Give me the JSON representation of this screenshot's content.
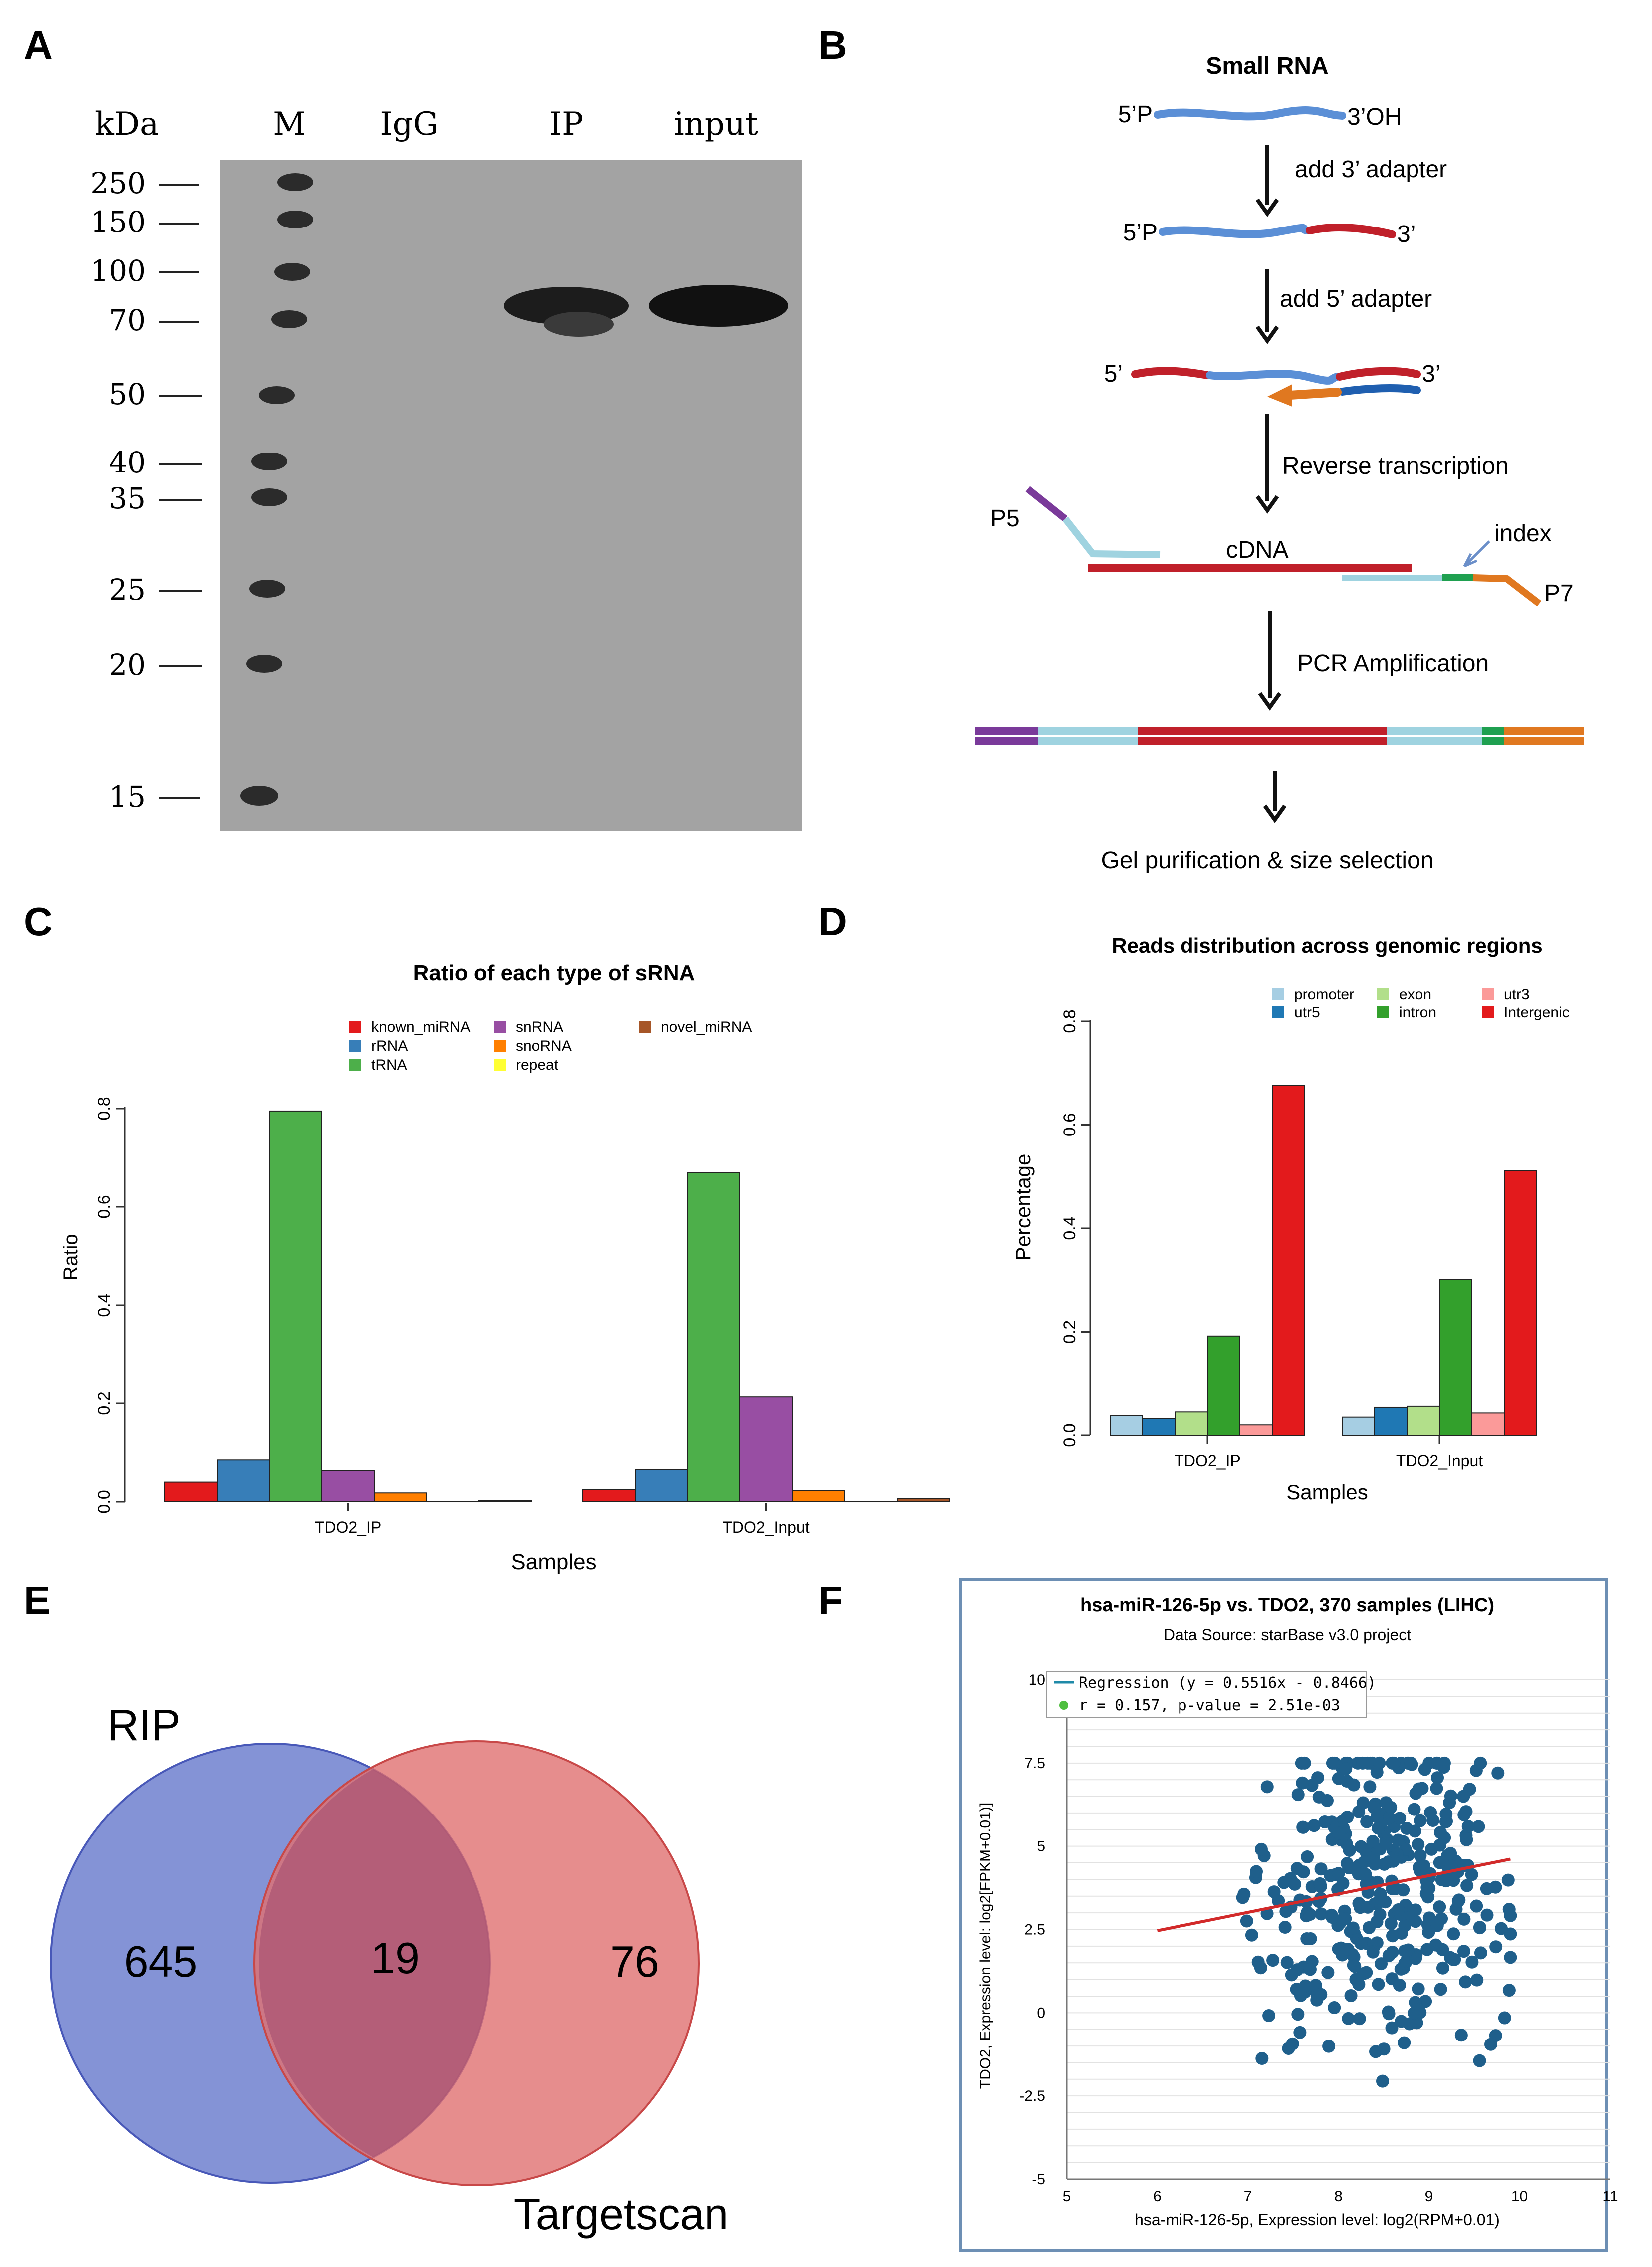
{
  "panels": {
    "A": {
      "label": "A",
      "units": "kDa",
      "lanes": [
        "M",
        "IgG",
        "IP",
        "input"
      ],
      "markers": [
        "250",
        "150",
        "100",
        "70",
        "50",
        "40",
        "35",
        "25",
        "20",
        "15"
      ],
      "colors": {
        "membrane": "#a3a3a3",
        "band": "#141414"
      }
    },
    "B": {
      "label": "B",
      "title": "Small RNA",
      "r1_left": "5’P",
      "r1_right": "3’OH",
      "step1": "add 3’ adapter",
      "r2_left": "5’P",
      "r2_right": "3’",
      "step2": "add 5’ adapter",
      "r3_left": "5’",
      "r3_right": "3’",
      "step3": "Reverse transcription",
      "p5": "P5",
      "cdna": "cDNA",
      "index": "index",
      "p7": "P7",
      "step4": "PCR Amplification",
      "step5": "Gel purification & size selection",
      "colors": {
        "rna": "#5b8fd6",
        "adapter3": "#c0202a",
        "rt": "#e07820",
        "purple": "#7a3a9a",
        "lightblue": "#9fd3e0",
        "green": "#1fa050"
      }
    },
    "C": {
      "label": "C",
      "chart_data": {
        "type": "bar",
        "title": "Ratio of each type of sRNA",
        "xlabel": "Samples",
        "ylabel": "Ratio",
        "ylim": [
          0,
          0.8
        ],
        "yticks": [
          "0.0",
          "0.2",
          "0.4",
          "0.6",
          "0.8"
        ],
        "categories": [
          "TDO2_IP",
          "TDO2_Input"
        ],
        "series": [
          {
            "name": "known_miRNA",
            "color": "#e31a1c",
            "values": [
              0.04,
              0.025
            ]
          },
          {
            "name": "rRNA",
            "color": "#377eb8",
            "values": [
              0.085,
              0.065
            ]
          },
          {
            "name": "tRNA",
            "color": "#4daf4a",
            "values": [
              0.795,
              0.67
            ]
          },
          {
            "name": "snRNA",
            "color": "#984ea3",
            "values": [
              0.063,
              0.213
            ]
          },
          {
            "name": "snoRNA",
            "color": "#ff7f00",
            "values": [
              0.018,
              0.023
            ]
          },
          {
            "name": "repeat",
            "color": "#ffff33",
            "values": [
              0.001,
              0.001
            ]
          },
          {
            "name": "novel_miRNA",
            "color": "#a65628",
            "values": [
              0.003,
              0.007
            ]
          }
        ],
        "legend": "top"
      }
    },
    "D": {
      "label": "D",
      "chart_data": {
        "type": "bar",
        "title": "Reads distribution across genomic regions",
        "xlabel": "Samples",
        "ylabel": "Percentage",
        "ylim": [
          0,
          0.8
        ],
        "yticks": [
          "0.0",
          "0.2",
          "0.4",
          "0.6",
          "0.8"
        ],
        "categories": [
          "TDO2_IP",
          "TDO2_Input"
        ],
        "series": [
          {
            "name": "promoter",
            "color": "#a6cee3",
            "values": [
              0.038,
              0.035
            ]
          },
          {
            "name": "utr5",
            "color": "#1f78b4",
            "values": [
              0.032,
              0.054
            ]
          },
          {
            "name": "exon",
            "color": "#b2df8a",
            "values": [
              0.045,
              0.056
            ]
          },
          {
            "name": "intron",
            "color": "#33a02c",
            "values": [
              0.192,
              0.301
            ]
          },
          {
            "name": "utr3",
            "color": "#fb9a99",
            "values": [
              0.02,
              0.043
            ]
          },
          {
            "name": "Intergenic",
            "color": "#e31a1c",
            "values": [
              0.676,
              0.511
            ]
          }
        ],
        "legend": "top"
      }
    },
    "E": {
      "label": "E",
      "set_a": "RIP",
      "set_b": "Targetscan",
      "only_a": "645",
      "both": "19",
      "only_b": "76",
      "colors": {
        "a": "#6f80cf",
        "b": "#e07070"
      }
    },
    "F": {
      "label": "F",
      "chart_data": {
        "type": "scatter",
        "title": "hsa-miR-126-5p vs. TDO2, 370 samples (LIHC)",
        "subtitle": "Data Source: starBase v3.0 project",
        "xlabel": "hsa-miR-126-5p, Expression level: log2(RPM+0.01)",
        "ylabel": "TDO2, Expression level: log2[FPKM+0.01)]",
        "xlim": [
          5,
          11
        ],
        "ylim": [
          -5,
          10
        ],
        "xticks": [
          "5",
          "6",
          "7",
          "8",
          "9",
          "10",
          "11"
        ],
        "yticks": [
          "-5",
          "-2.5",
          "0",
          "2.5",
          "5",
          "7.5",
          "10"
        ],
        "legend_regression": "Regression (y = 0.5516x - 0.8466)",
        "legend_stats": "r = 0.157, p-value = 2.51e-03",
        "regression": {
          "slope": 0.5516,
          "intercept": -0.8466,
          "x_range": [
            6,
            9.9
          ]
        },
        "n_samples": 370,
        "point_color": "#1f5f8b",
        "line_color": "#d22a2a",
        "points": []
      }
    }
  }
}
